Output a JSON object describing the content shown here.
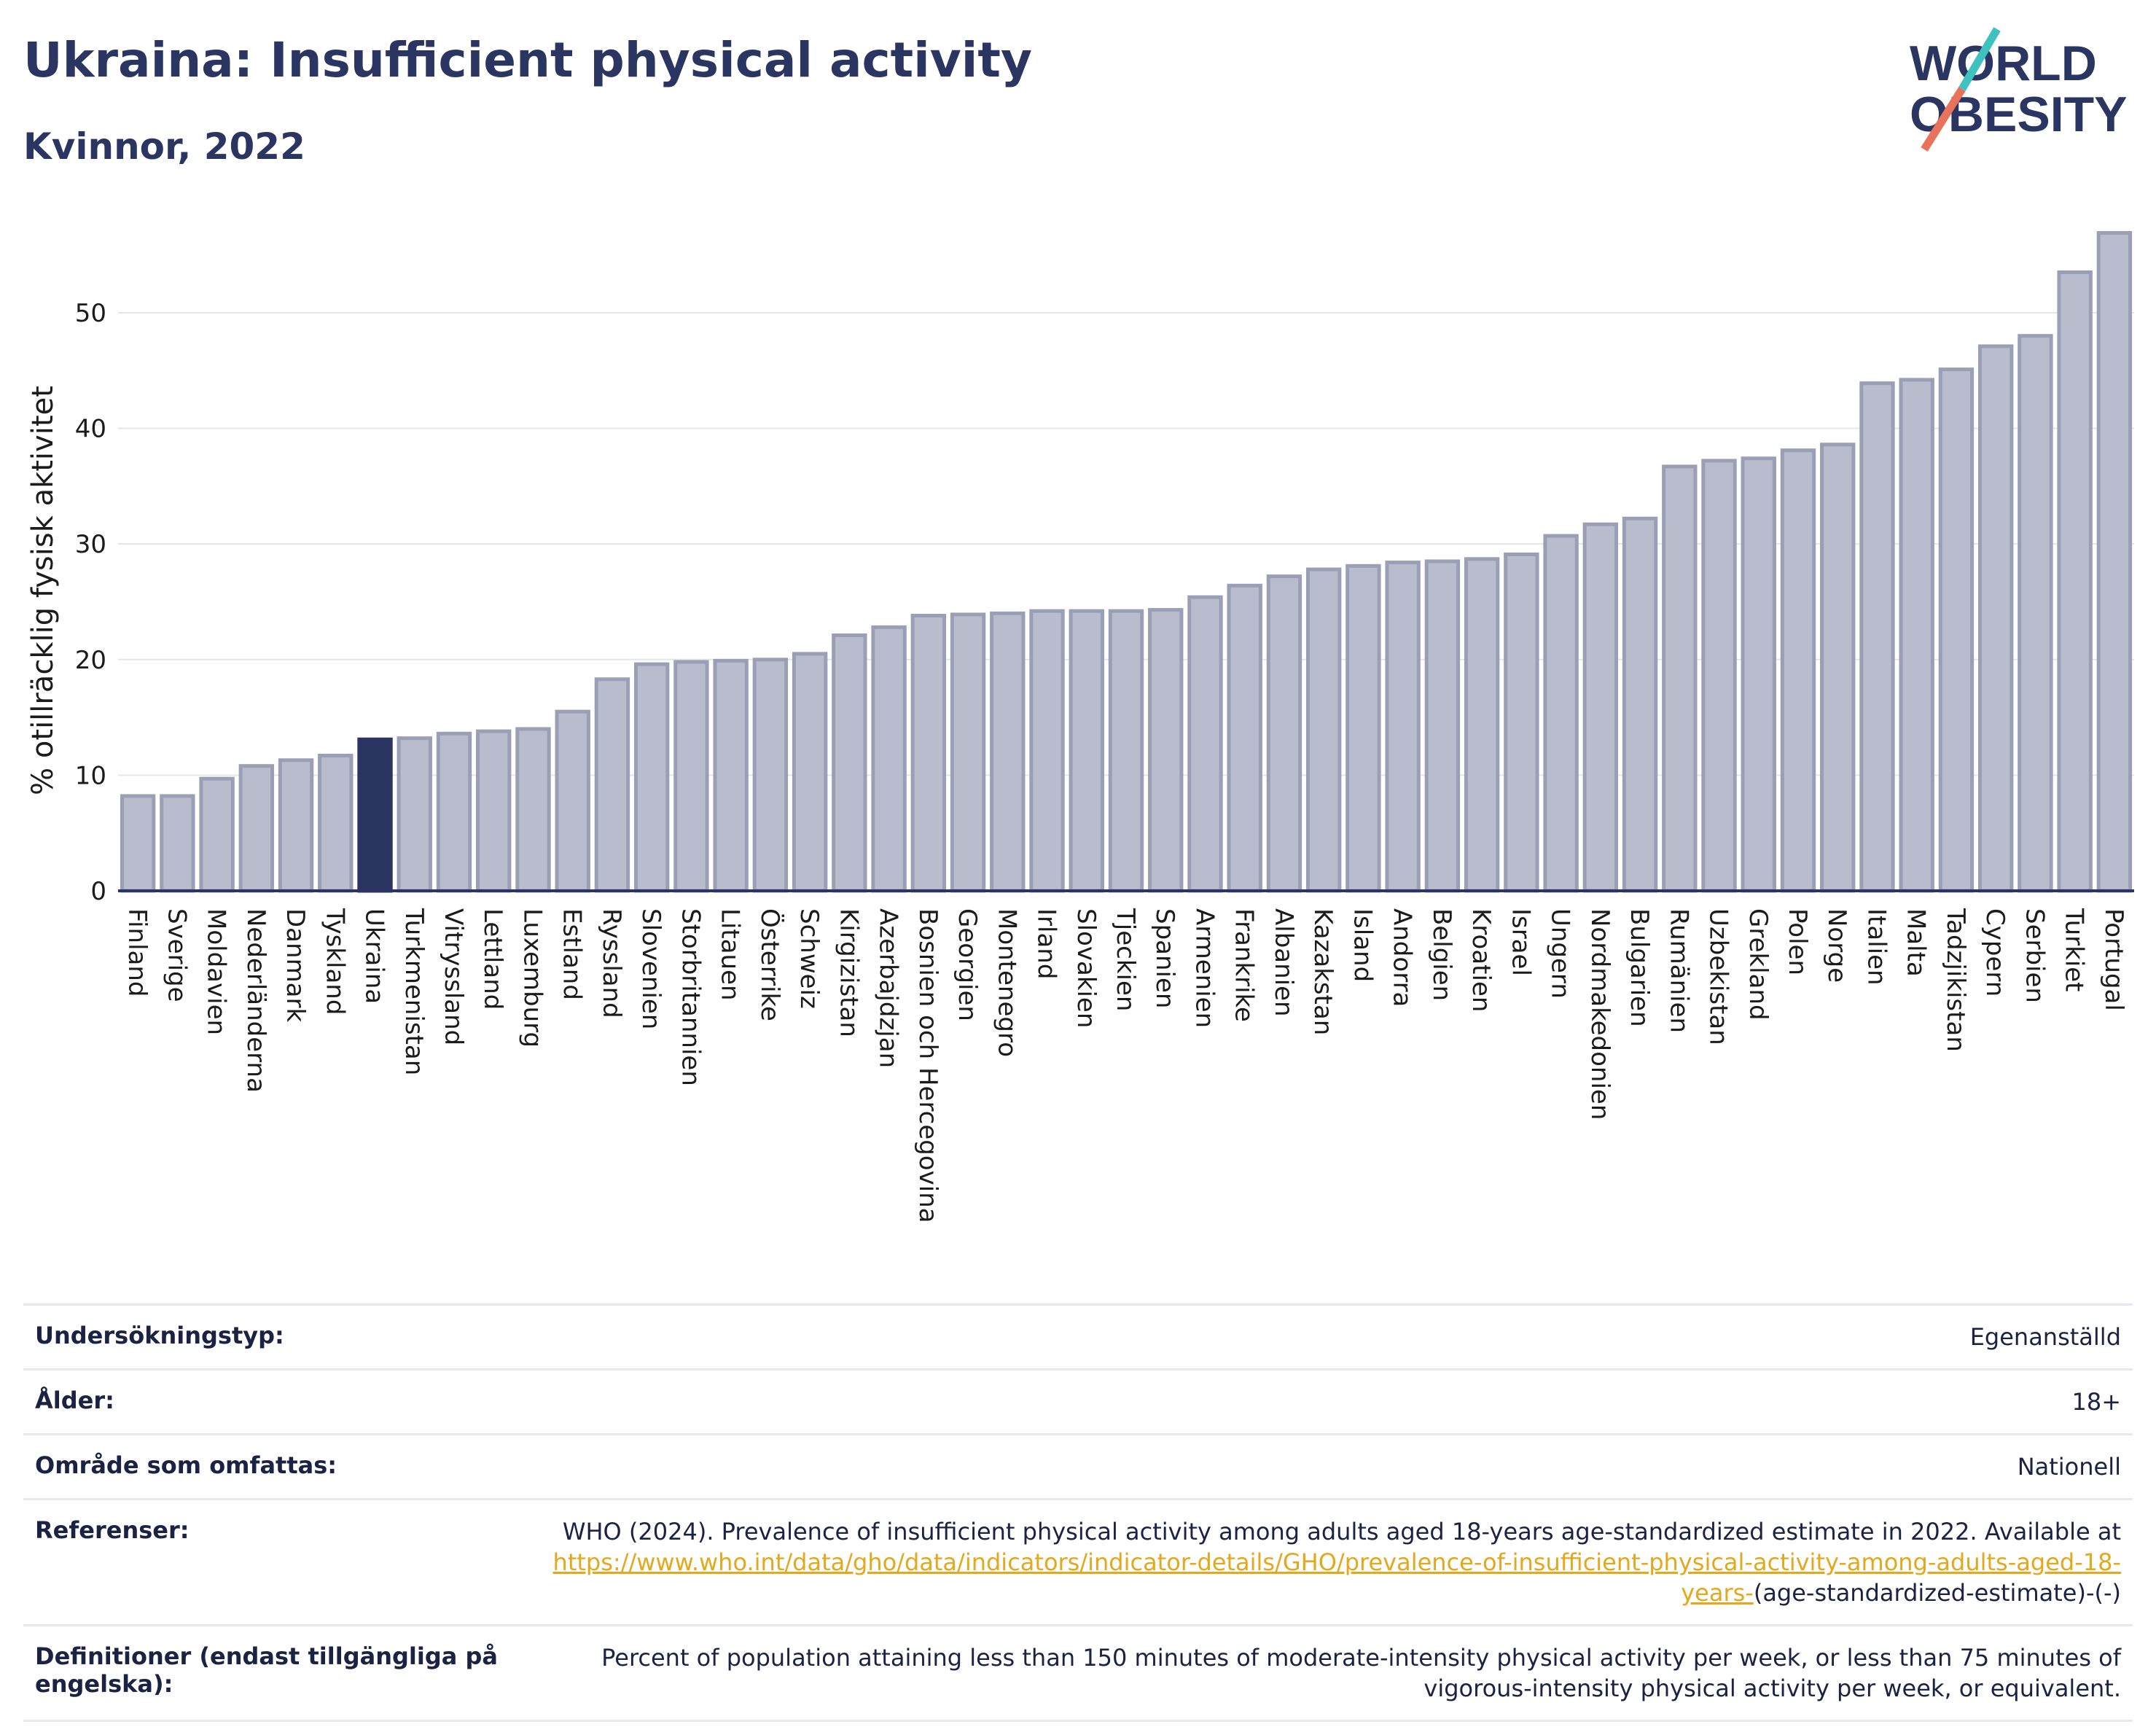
{
  "header": {
    "title": "Ukraina: Insufficient physical activity",
    "subtitle": "Kvinnor, 2022"
  },
  "logo": {
    "line1": "WORLD",
    "line2": "OBESITY",
    "slash_colors": [
      "#3fc1c0",
      "#e8735a"
    ]
  },
  "colors": {
    "bar": "#b8bccc",
    "bar_border": "#9a9fb5",
    "highlight": "#2b3561",
    "grid": "#e6e6e6"
  },
  "chart_data": {
    "type": "bar",
    "ylabel": "% otillräcklig fysisk aktivitet",
    "ylim": [
      0,
      57.5
    ],
    "yticks": [
      0,
      10,
      20,
      30,
      40,
      50
    ],
    "grid": true,
    "highlight": "Ukraina",
    "categories": [
      "Finland",
      "Sverige",
      "Moldavien",
      "Nederländerna",
      "Danmark",
      "Tyskland",
      "Ukraina",
      "Turkmenistan",
      "Vitryssland",
      "Lettland",
      "Luxemburg",
      "Estland",
      "Ryssland",
      "Slovenien",
      "Storbritannien",
      "Litauen",
      "Österrike",
      "Schweiz",
      "Kirgizistan",
      "Azerbajdzjan",
      "Bosnien och Hercegovina",
      "Georgien",
      "Montenegro",
      "Irland",
      "Slovakien",
      "Tjeckien",
      "Spanien",
      "Armenien",
      "Frankrike",
      "Albanien",
      "Kazakstan",
      "Island",
      "Andorra",
      "Belgien",
      "Kroatien",
      "Israel",
      "Ungern",
      "Nordmakedonien",
      "Bulgarien",
      "Rumänien",
      "Uzbekistan",
      "Grekland",
      "Polen",
      "Norge",
      "Italien",
      "Malta",
      "Tadzjikistan",
      "Cypern",
      "Serbien",
      "Turkiet",
      "Portugal"
    ],
    "values": [
      8.2,
      8.2,
      9.7,
      10.8,
      11.3,
      11.7,
      13.1,
      13.2,
      13.6,
      13.8,
      14.0,
      15.5,
      18.3,
      19.6,
      19.8,
      19.9,
      20.0,
      20.5,
      22.1,
      22.8,
      23.8,
      23.9,
      24.0,
      24.2,
      24.2,
      24.2,
      24.3,
      25.4,
      26.4,
      27.2,
      27.8,
      28.1,
      28.4,
      28.5,
      28.7,
      29.1,
      30.7,
      31.7,
      32.2,
      36.7,
      37.2,
      37.4,
      38.1,
      38.6,
      43.9,
      44.2,
      45.1,
      47.1,
      48.0,
      53.5,
      56.9
    ]
  },
  "meta": [
    {
      "key": "Undersökningstyp:",
      "value": "Egenanställd"
    },
    {
      "key": "Ålder:",
      "value": "18+"
    },
    {
      "key": "Område som omfattas:",
      "value": "Nationell"
    },
    {
      "key": "Referenser:",
      "value": "WHO (2024). Prevalence of insufficient physical activity among adults aged 18-years age-standardized estimate in 2022. Available at",
      "link": "https://www.who.int/data/gho/data/indicators/indicator-details/GHO/prevalence-of-insufficient-physical-activity-among-adults-aged-18-years-",
      "value_after": "(age-standardized-estimate)-(-)"
    },
    {
      "key": "Definitioner (endast tillgängliga på engelska):",
      "value": "Percent of population attaining less than 150 minutes of moderate-intensity physical activity per week, or less than 75 minutes of vigorous-intensity physical activity per week, or equivalent."
    }
  ]
}
